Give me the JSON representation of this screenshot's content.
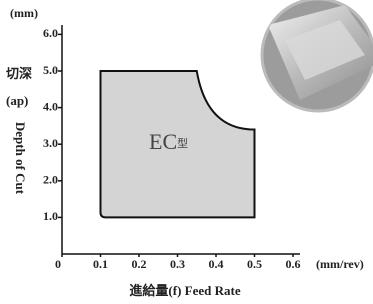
{
  "chart_data": {
    "type": "region",
    "y_unit": "(mm)",
    "y_label_jp": "切深",
    "y_label_abbr": "(ap)",
    "y_label": "Depth of Cut",
    "x_label": "進給量(f) Feed Rate",
    "x_unit": "(mm/rev)",
    "region_label": "EC",
    "region_label_suffix": "型",
    "x": [
      0.1,
      0.1,
      0.35,
      0.5,
      0.5
    ],
    "values": [
      1.0,
      5.0,
      5.0,
      3.4,
      1.0
    ],
    "color": "#d4d4d4",
    "xlim": [
      0,
      0.6
    ],
    "xticks": [
      0,
      0.1,
      0.2,
      0.3,
      0.4,
      0.5,
      0.6
    ],
    "ylim": [
      0,
      6
    ],
    "yticks": [
      {
        "value": 1,
        "label": "1.0"
      },
      {
        "value": 2,
        "label": "2.0"
      },
      {
        "value": 3,
        "label": "3.0"
      },
      {
        "value": 4,
        "label": "4.0"
      },
      {
        "value": 5,
        "label": "5.0"
      },
      {
        "value": 6,
        "label": "6.0"
      }
    ]
  }
}
